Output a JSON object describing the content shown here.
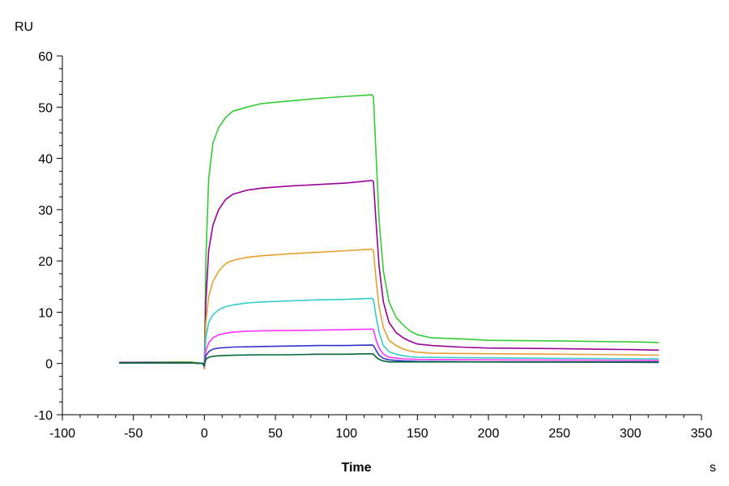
{
  "chart_data": {
    "type": "line",
    "title": "",
    "xlabel": "Time",
    "x_unit": "s",
    "y_unit": "RU",
    "xlim": [
      -100,
      350
    ],
    "ylim": [
      -10,
      60
    ],
    "x_ticks": [
      -100,
      -50,
      0,
      50,
      100,
      150,
      200,
      250,
      300,
      350
    ],
    "y_ticks": [
      -10,
      0,
      10,
      20,
      30,
      40,
      50,
      60
    ],
    "grid": false,
    "legend": "none",
    "series": [
      {
        "color": "#33cc33",
        "points": [
          [
            -60,
            0.2
          ],
          [
            -10,
            0.3
          ],
          [
            -1,
            0
          ],
          [
            0,
            -1
          ],
          [
            1,
            20
          ],
          [
            3,
            36
          ],
          [
            6,
            43
          ],
          [
            10,
            46
          ],
          [
            15,
            48
          ],
          [
            20,
            49.2
          ],
          [
            30,
            50
          ],
          [
            40,
            50.7
          ],
          [
            60,
            51.2
          ],
          [
            80,
            51.7
          ],
          [
            100,
            52.1
          ],
          [
            118,
            52.4
          ],
          [
            119,
            52
          ],
          [
            121,
            40
          ],
          [
            123,
            28
          ],
          [
            126,
            18
          ],
          [
            130,
            12
          ],
          [
            135,
            9
          ],
          [
            140,
            7.5
          ],
          [
            145,
            6.3
          ],
          [
            150,
            5.6
          ],
          [
            160,
            5
          ],
          [
            180,
            4.8
          ],
          [
            200,
            4.5
          ],
          [
            250,
            4.4
          ],
          [
            300,
            4.2
          ],
          [
            320,
            4.1
          ]
        ]
      },
      {
        "color": "#990099",
        "points": [
          [
            -60,
            0.2
          ],
          [
            -10,
            0.2
          ],
          [
            -1,
            0
          ],
          [
            0,
            -1
          ],
          [
            1,
            12
          ],
          [
            3,
            22
          ],
          [
            6,
            27
          ],
          [
            10,
            30
          ],
          [
            15,
            32
          ],
          [
            20,
            33
          ],
          [
            30,
            33.8
          ],
          [
            40,
            34.2
          ],
          [
            60,
            34.6
          ],
          [
            80,
            34.9
          ],
          [
            100,
            35.2
          ],
          [
            118,
            35.7
          ],
          [
            119,
            35.5
          ],
          [
            121,
            27
          ],
          [
            123,
            19
          ],
          [
            126,
            12
          ],
          [
            130,
            8
          ],
          [
            135,
            6
          ],
          [
            140,
            5
          ],
          [
            145,
            4.3
          ],
          [
            150,
            3.8
          ],
          [
            160,
            3.5
          ],
          [
            180,
            3.2
          ],
          [
            200,
            3
          ],
          [
            250,
            2.9
          ],
          [
            300,
            2.7
          ],
          [
            320,
            2.6
          ]
        ]
      },
      {
        "color": "#e6a030",
        "points": [
          [
            -60,
            0.1
          ],
          [
            -10,
            0.2
          ],
          [
            -1,
            0
          ],
          [
            0,
            -1
          ],
          [
            1,
            8
          ],
          [
            3,
            13
          ],
          [
            6,
            16
          ],
          [
            10,
            18
          ],
          [
            15,
            19.5
          ],
          [
            20,
            20.1
          ],
          [
            30,
            20.7
          ],
          [
            40,
            21
          ],
          [
            60,
            21.4
          ],
          [
            80,
            21.7
          ],
          [
            100,
            22
          ],
          [
            118,
            22.3
          ],
          [
            119,
            22
          ],
          [
            121,
            16
          ],
          [
            123,
            11
          ],
          [
            126,
            7
          ],
          [
            130,
            4.5
          ],
          [
            135,
            3.5
          ],
          [
            140,
            2.8
          ],
          [
            145,
            2.4
          ],
          [
            150,
            2.2
          ],
          [
            160,
            2
          ],
          [
            200,
            1.9
          ],
          [
            250,
            1.8
          ],
          [
            300,
            1.7
          ],
          [
            320,
            1.6
          ]
        ]
      },
      {
        "color": "#33cccc",
        "points": [
          [
            -60,
            0.1
          ],
          [
            -10,
            0.1
          ],
          [
            -1,
            0
          ],
          [
            0,
            -0.5
          ],
          [
            1,
            5
          ],
          [
            3,
            8
          ],
          [
            6,
            9.5
          ],
          [
            10,
            10.5
          ],
          [
            15,
            11.1
          ],
          [
            20,
            11.4
          ],
          [
            30,
            11.8
          ],
          [
            40,
            12
          ],
          [
            60,
            12.2
          ],
          [
            80,
            12.4
          ],
          [
            100,
            12.5
          ],
          [
            118,
            12.7
          ],
          [
            119,
            12.5
          ],
          [
            121,
            9
          ],
          [
            123,
            6
          ],
          [
            126,
            3.5
          ],
          [
            130,
            2.3
          ],
          [
            135,
            1.8
          ],
          [
            140,
            1.5
          ],
          [
            145,
            1.3
          ],
          [
            150,
            1.2
          ],
          [
            200,
            1.1
          ],
          [
            250,
            1
          ],
          [
            320,
            0.9
          ]
        ]
      },
      {
        "color": "#ff33ff",
        "points": [
          [
            -60,
            0.1
          ],
          [
            -10,
            0.1
          ],
          [
            -1,
            0
          ],
          [
            0,
            -0.5
          ],
          [
            1,
            2.5
          ],
          [
            3,
            4
          ],
          [
            6,
            5
          ],
          [
            10,
            5.6
          ],
          [
            15,
            5.9
          ],
          [
            20,
            6.1
          ],
          [
            30,
            6.3
          ],
          [
            50,
            6.4
          ],
          [
            80,
            6.5
          ],
          [
            100,
            6.6
          ],
          [
            118,
            6.7
          ],
          [
            119,
            6.6
          ],
          [
            121,
            4.5
          ],
          [
            123,
            3
          ],
          [
            126,
            1.8
          ],
          [
            130,
            1.2
          ],
          [
            140,
            0.9
          ],
          [
            150,
            0.8
          ],
          [
            200,
            0.7
          ],
          [
            320,
            0.6
          ]
        ]
      },
      {
        "color": "#3333cc",
        "points": [
          [
            -60,
            0.1
          ],
          [
            -10,
            0.1
          ],
          [
            -1,
            0
          ],
          [
            0,
            -0.5
          ],
          [
            1,
            1.5
          ],
          [
            3,
            2.3
          ],
          [
            6,
            2.8
          ],
          [
            10,
            3
          ],
          [
            20,
            3.2
          ],
          [
            40,
            3.3
          ],
          [
            60,
            3.4
          ],
          [
            80,
            3.5
          ],
          [
            100,
            3.5
          ],
          [
            118,
            3.6
          ],
          [
            119,
            3.5
          ],
          [
            121,
            2.5
          ],
          [
            123,
            1.6
          ],
          [
            126,
            1
          ],
          [
            130,
            0.7
          ],
          [
            140,
            0.5
          ],
          [
            150,
            0.4
          ],
          [
            200,
            0.3
          ],
          [
            320,
            0.2
          ]
        ]
      },
      {
        "color": "#006633",
        "points": [
          [
            -60,
            0.1
          ],
          [
            -10,
            0.1
          ],
          [
            -1,
            0
          ],
          [
            0,
            -0.3
          ],
          [
            1,
            0.8
          ],
          [
            3,
            1.2
          ],
          [
            6,
            1.4
          ],
          [
            10,
            1.5
          ],
          [
            20,
            1.6
          ],
          [
            40,
            1.7
          ],
          [
            60,
            1.7
          ],
          [
            80,
            1.8
          ],
          [
            100,
            1.8
          ],
          [
            118,
            1.9
          ],
          [
            119,
            1.8
          ],
          [
            121,
            1.2
          ],
          [
            123,
            0.8
          ],
          [
            126,
            0.5
          ],
          [
            130,
            0.3
          ],
          [
            140,
            0.3
          ],
          [
            200,
            0.3
          ],
          [
            320,
            0.3
          ]
        ]
      }
    ]
  }
}
